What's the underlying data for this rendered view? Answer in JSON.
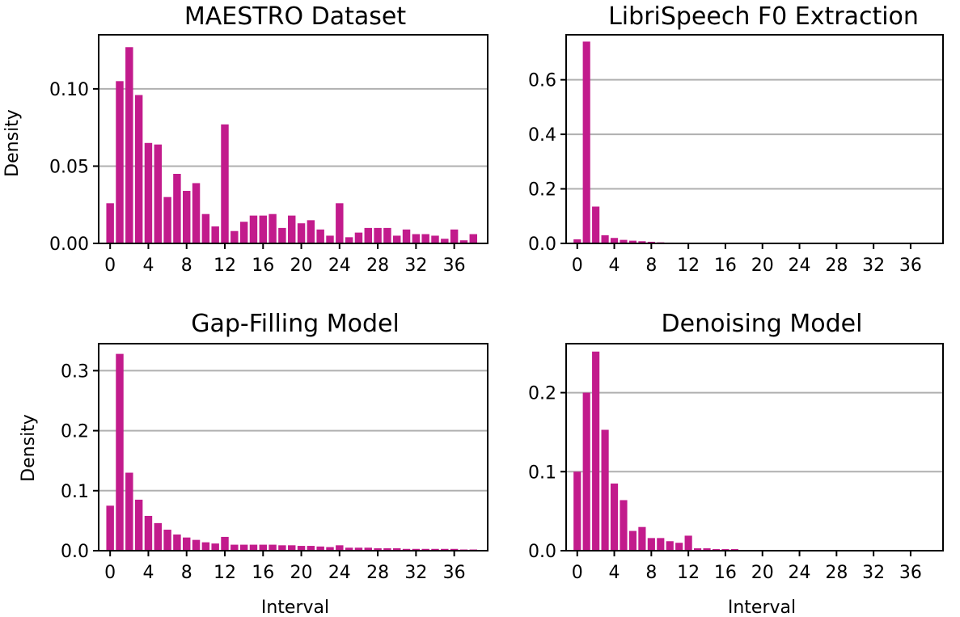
{
  "chart_data": [
    {
      "type": "bar",
      "title": "MAESTRO Dataset",
      "xlabel": "",
      "ylabel": "Density",
      "color": "#c21b8c",
      "grid": "horizontal",
      "xlim": [
        -1.2,
        39.5
      ],
      "ylim": [
        0,
        0.135
      ],
      "xticks": [
        0,
        4,
        8,
        12,
        16,
        20,
        24,
        28,
        32,
        36
      ],
      "xtick_labels": [
        "0",
        "4",
        "8",
        "12",
        "16",
        "20",
        "24",
        "28",
        "32",
        "36"
      ],
      "yticks": [
        0,
        0.05,
        0.1
      ],
      "ytick_labels": [
        "0.00",
        "0.05",
        "0.10"
      ],
      "x": [
        0,
        1,
        2,
        3,
        4,
        5,
        6,
        7,
        8,
        9,
        10,
        11,
        12,
        13,
        14,
        15,
        16,
        17,
        18,
        19,
        20,
        21,
        22,
        23,
        24,
        25,
        26,
        27,
        28,
        29,
        30,
        31,
        32,
        33,
        34,
        35,
        36,
        37,
        38
      ],
      "values": [
        0.026,
        0.105,
        0.127,
        0.096,
        0.065,
        0.064,
        0.03,
        0.045,
        0.034,
        0.039,
        0.019,
        0.011,
        0.077,
        0.008,
        0.014,
        0.018,
        0.018,
        0.019,
        0.01,
        0.018,
        0.013,
        0.015,
        0.009,
        0.005,
        0.026,
        0.004,
        0.007,
        0.01,
        0.01,
        0.01,
        0.005,
        0.009,
        0.006,
        0.006,
        0.005,
        0.003,
        0.009,
        0.002,
        0.006
      ]
    },
    {
      "type": "bar",
      "title": "LibriSpeech F0 Extraction",
      "xlabel": "",
      "ylabel": "",
      "color": "#c21b8c",
      "grid": "horizontal",
      "xlim": [
        -1.2,
        39.5
      ],
      "ylim": [
        0,
        0.765
      ],
      "xticks": [
        0,
        4,
        8,
        12,
        16,
        20,
        24,
        28,
        32,
        36
      ],
      "xtick_labels": [
        "0",
        "4",
        "8",
        "12",
        "16",
        "20",
        "24",
        "28",
        "32",
        "36"
      ],
      "yticks": [
        0,
        0.2,
        0.4,
        0.6
      ],
      "ytick_labels": [
        "0.0",
        "0.2",
        "0.4",
        "0.6"
      ],
      "x": [
        0,
        1,
        2,
        3,
        4,
        5,
        6,
        7,
        8,
        9,
        10,
        11,
        12,
        13,
        14,
        15,
        16,
        17,
        18,
        19,
        20,
        21,
        22,
        23,
        24,
        25,
        26,
        27,
        28,
        29,
        30,
        31,
        32,
        33,
        34,
        35,
        36,
        37,
        38
      ],
      "values": [
        0.015,
        0.74,
        0.135,
        0.03,
        0.02,
        0.013,
        0.01,
        0.008,
        0.006,
        0.004,
        0.003,
        0.002,
        0.002,
        0.001,
        0.001,
        0.001,
        0.001,
        0.001,
        0.001,
        0.001,
        0.001,
        0.001,
        0.001,
        0.001,
        0.001,
        0.001,
        0.001,
        0.001,
        0.001,
        0.001,
        0.001,
        0.001,
        0.001,
        0.001,
        0.001,
        0.001,
        0.001,
        0.001,
        0.001
      ]
    },
    {
      "type": "bar",
      "title": "Gap-Filling Model",
      "xlabel": "Interval",
      "ylabel": "Density",
      "color": "#c21b8c",
      "grid": "horizontal",
      "xlim": [
        -1.2,
        39.5
      ],
      "ylim": [
        0,
        0.345
      ],
      "xticks": [
        0,
        4,
        8,
        12,
        16,
        20,
        24,
        28,
        32,
        36
      ],
      "xtick_labels": [
        "0",
        "4",
        "8",
        "12",
        "16",
        "20",
        "24",
        "28",
        "32",
        "36"
      ],
      "yticks": [
        0,
        0.1,
        0.2,
        0.3
      ],
      "ytick_labels": [
        "0.0",
        "0.1",
        "0.2",
        "0.3"
      ],
      "x": [
        0,
        1,
        2,
        3,
        4,
        5,
        6,
        7,
        8,
        9,
        10,
        11,
        12,
        13,
        14,
        15,
        16,
        17,
        18,
        19,
        20,
        21,
        22,
        23,
        24,
        25,
        26,
        27,
        28,
        29,
        30,
        31,
        32,
        33,
        34,
        35,
        36,
        37,
        38
      ],
      "values": [
        0.075,
        0.328,
        0.13,
        0.085,
        0.058,
        0.046,
        0.035,
        0.027,
        0.022,
        0.018,
        0.014,
        0.012,
        0.023,
        0.01,
        0.01,
        0.01,
        0.01,
        0.01,
        0.009,
        0.009,
        0.008,
        0.008,
        0.007,
        0.006,
        0.009,
        0.005,
        0.005,
        0.005,
        0.004,
        0.004,
        0.004,
        0.003,
        0.003,
        0.003,
        0.003,
        0.003,
        0.003,
        0.002,
        0.002
      ]
    },
    {
      "type": "bar",
      "title": "Denoising Model",
      "xlabel": "Interval",
      "ylabel": "",
      "color": "#c21b8c",
      "grid": "horizontal",
      "xlim": [
        -1.2,
        39.5
      ],
      "ylim": [
        0,
        0.262
      ],
      "xticks": [
        0,
        4,
        8,
        12,
        16,
        20,
        24,
        28,
        32,
        36
      ],
      "xtick_labels": [
        "0",
        "4",
        "8",
        "12",
        "16",
        "20",
        "24",
        "28",
        "32",
        "36"
      ],
      "yticks": [
        0,
        0.1,
        0.2
      ],
      "ytick_labels": [
        "0.0",
        "0.1",
        "0.2"
      ],
      "x": [
        0,
        1,
        2,
        3,
        4,
        5,
        6,
        7,
        8,
        9,
        10,
        11,
        12,
        13,
        14,
        15,
        16,
        17,
        18,
        19,
        20,
        21,
        22,
        23,
        24,
        25,
        26,
        27,
        28,
        29,
        30,
        31,
        32,
        33,
        34,
        35,
        36,
        37,
        38
      ],
      "values": [
        0.1,
        0.2,
        0.252,
        0.153,
        0.085,
        0.064,
        0.025,
        0.03,
        0.016,
        0.016,
        0.012,
        0.01,
        0.019,
        0.003,
        0.003,
        0.002,
        0.002,
        0.002,
        0.001,
        0.001,
        0.001,
        0.001,
        0.001,
        0.001,
        0.001,
        0.001,
        0.001,
        0.001,
        0.001,
        0.001,
        0.001,
        0.001,
        0.001,
        0.001,
        0.001,
        0.001,
        0.001,
        0.001,
        0.001
      ]
    }
  ]
}
